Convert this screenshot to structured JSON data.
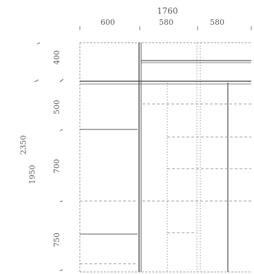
{
  "drawing": {
    "total_width": "1760",
    "column_widths": [
      "600",
      "580",
      "580"
    ],
    "row_heights": [
      "400",
      "500",
      "700",
      "750"
    ],
    "total_height_labels": [
      "2350",
      "1950"
    ]
  },
  "colors": {
    "line": "#777777",
    "dashed": "#999999",
    "heavy": "#555555"
  }
}
